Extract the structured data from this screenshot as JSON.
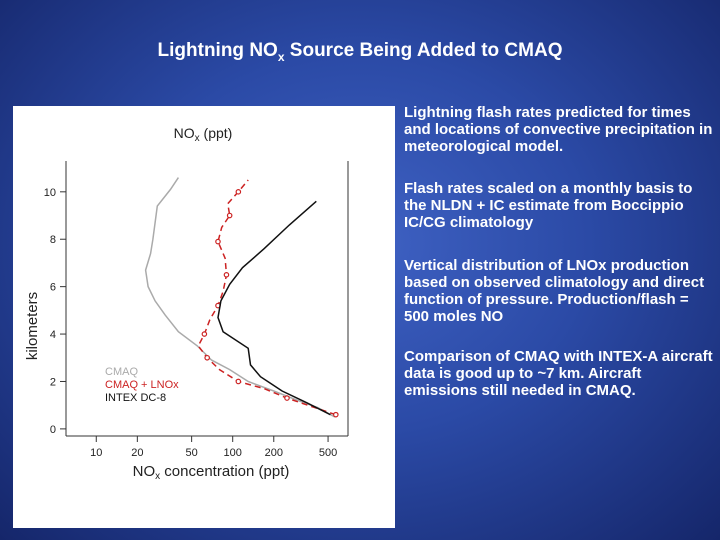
{
  "slide": {
    "title_main": "Lightning NO",
    "title_sub": "x",
    "title_rest": " Source Being Added to CMAQ"
  },
  "bullets": [
    "Lightning flash rates predicted for times and locations of convective precipitation in meteorological model.",
    "Flash rates scaled on a monthly basis to the NLDN + IC estimate from Boccippio IC/CG climatology",
    "Vertical distribution of LNOx production based on observed climatology and direct function of pressure.  Production/flash = 500 moles NO",
    "Comparison of CMAQ with INTEX-A aircraft data is good up to ~7 km. Aircraft emissions still needed in CMAQ."
  ],
  "chart_data": {
    "type": "line",
    "title_main": "NO",
    "title_sub": "x",
    "title_rest": " (ppt)",
    "xlabel_main": "NO",
    "xlabel_sub": "x",
    "xlabel_rest": " concentration (ppt)",
    "ylabel": "kilometers",
    "xscale": "log",
    "xlim": [
      6,
      700
    ],
    "ylim": [
      -0.3,
      11.3
    ],
    "xticks": [
      10,
      20,
      50,
      100,
      200,
      500
    ],
    "yticks": [
      0,
      2,
      4,
      6,
      8,
      10
    ],
    "legend": [
      {
        "label": "CMAQ",
        "color": "#aaaaaa"
      },
      {
        "label": "CMAQ + LNOx",
        "color": "#cc2222"
      },
      {
        "label": "INTEX DC-8",
        "color": "#111111"
      }
    ],
    "series": [
      {
        "name": "CMAQ",
        "color": "#aaaaaa",
        "marker": false,
        "dashed": false,
        "points": [
          [
            560,
            0.5
          ],
          [
            420,
            0.9
          ],
          [
            300,
            1.2
          ],
          [
            200,
            1.6
          ],
          [
            130,
            2.0
          ],
          [
            95,
            2.5
          ],
          [
            70,
            2.9
          ],
          [
            55,
            3.5
          ],
          [
            40,
            4.1
          ],
          [
            32,
            4.8
          ],
          [
            27,
            5.4
          ],
          [
            24,
            6.0
          ],
          [
            23,
            6.7
          ],
          [
            25,
            7.4
          ],
          [
            26,
            8.0
          ],
          [
            27,
            8.7
          ],
          [
            28,
            9.4
          ],
          [
            35,
            10.1
          ],
          [
            40,
            10.6
          ]
        ]
      },
      {
        "name": "CMAQ + LNOx",
        "color": "#cc2222",
        "marker": true,
        "dashed": true,
        "points": [
          [
            570,
            0.6
          ],
          [
            400,
            0.9
          ],
          [
            250,
            1.3
          ],
          [
            170,
            1.7
          ],
          [
            110,
            2.0
          ],
          [
            80,
            2.5
          ],
          [
            65,
            3.0
          ],
          [
            56,
            3.5
          ],
          [
            62,
            4.0
          ],
          [
            68,
            4.6
          ],
          [
            78,
            5.2
          ],
          [
            85,
            5.8
          ],
          [
            90,
            6.5
          ],
          [
            88,
            7.2
          ],
          [
            78,
            7.9
          ],
          [
            83,
            8.5
          ],
          [
            95,
            9.0
          ],
          [
            92,
            9.5
          ],
          [
            110,
            10.0
          ],
          [
            130,
            10.5
          ]
        ]
      },
      {
        "name": "INTEX DC-8",
        "color": "#111111",
        "marker": false,
        "dashed": false,
        "points": [
          [
            520,
            0.6
          ],
          [
            350,
            1.1
          ],
          [
            230,
            1.6
          ],
          [
            160,
            2.2
          ],
          [
            135,
            2.7
          ],
          [
            130,
            3.4
          ],
          [
            85,
            4.1
          ],
          [
            78,
            4.7
          ],
          [
            82,
            5.4
          ],
          [
            95,
            6.1
          ],
          [
            118,
            6.8
          ],
          [
            170,
            7.6
          ],
          [
            260,
            8.6
          ],
          [
            410,
            9.6
          ]
        ]
      }
    ]
  }
}
